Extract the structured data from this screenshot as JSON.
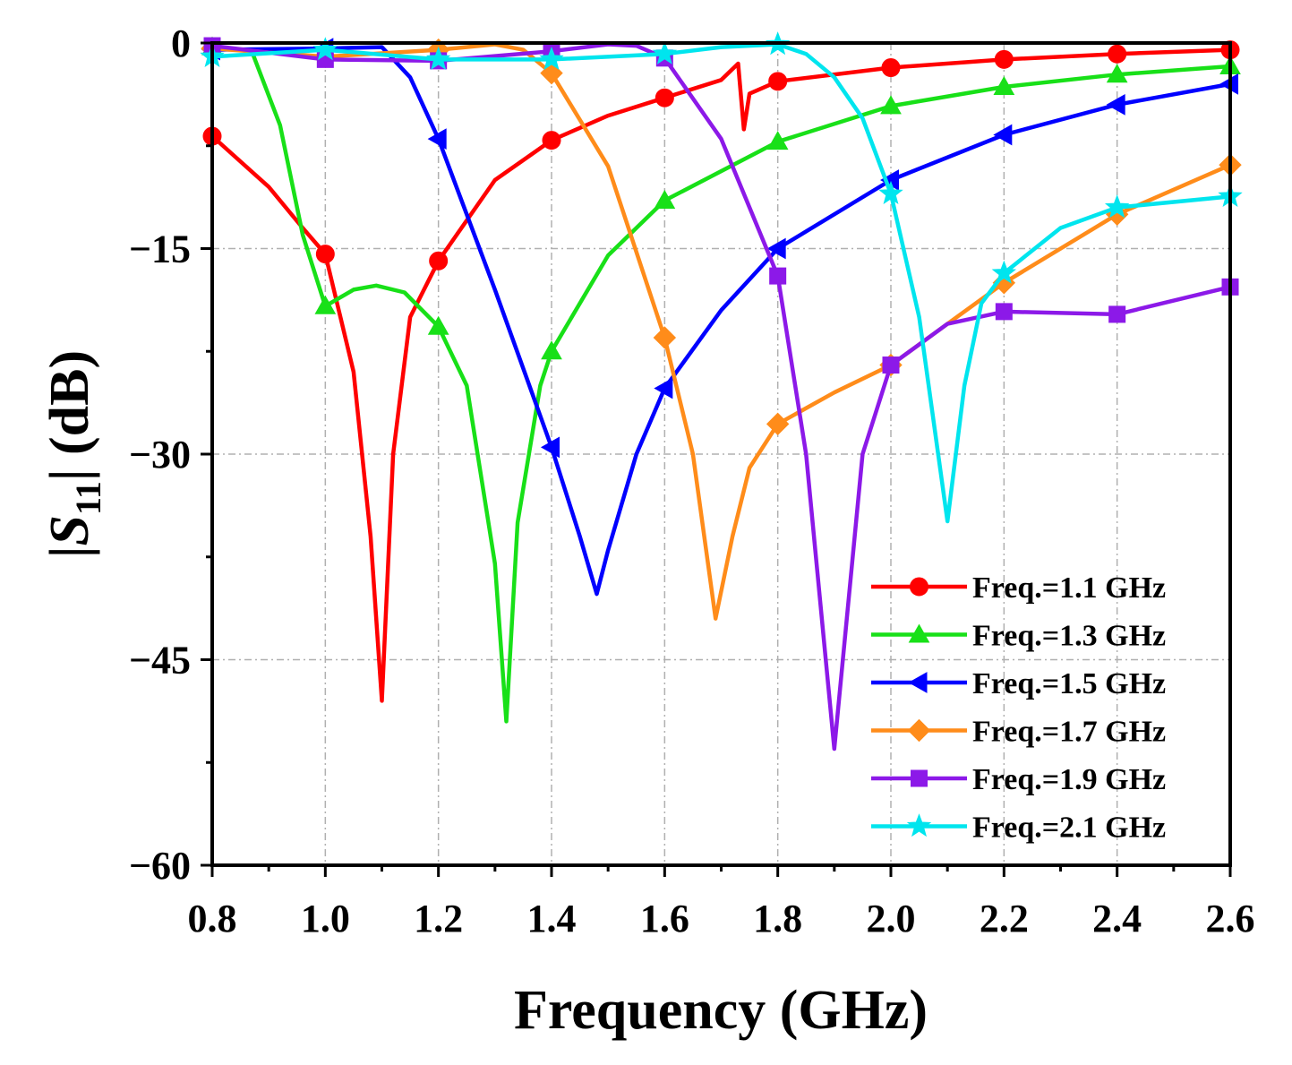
{
  "chart_data": {
    "type": "line",
    "title": "",
    "xlabel": "Frequency (GHz)",
    "ylabel_parts": {
      "left": "|",
      "var": "S",
      "sub": "11",
      "right": "| (dB)"
    },
    "xlim": [
      0.8,
      2.6
    ],
    "ylim": [
      -60,
      0
    ],
    "xticks": [
      0.8,
      1.0,
      1.2,
      1.4,
      1.6,
      1.8,
      2.0,
      2.2,
      2.4,
      2.6
    ],
    "xtick_labels": [
      "0.8",
      "1.0",
      "1.2",
      "1.4",
      "1.6",
      "1.8",
      "2.0",
      "2.2",
      "2.4",
      "2.6"
    ],
    "yticks": [
      0,
      -15,
      -30,
      -45,
      -60
    ],
    "ytick_labels": [
      "0",
      "−15",
      "−30",
      "−45",
      "−60"
    ],
    "grid": true,
    "legend_position": "bottom-right",
    "series": [
      {
        "name": "Freq.=1.1 GHz",
        "color": "#ff0000",
        "marker": "circle",
        "x": [
          0.8,
          0.9,
          0.96,
          1.0,
          1.05,
          1.08,
          1.1,
          1.12,
          1.15,
          1.2,
          1.3,
          1.4,
          1.5,
          1.6,
          1.7,
          1.73,
          1.74,
          1.75,
          1.8,
          2.0,
          2.2,
          2.4,
          2.6
        ],
        "y": [
          -6.8,
          -10.5,
          -13.5,
          -15.4,
          -24,
          -36,
          -48,
          -30,
          -20,
          -15.9,
          -10,
          -7.1,
          -5.3,
          -4,
          -2.7,
          -1.5,
          -6.3,
          -3.7,
          -2.8,
          -1.8,
          -1.2,
          -0.8,
          -0.5
        ],
        "mx": [
          0.8,
          1.0,
          1.2,
          1.4,
          1.6,
          1.8,
          2.0,
          2.2,
          2.4,
          2.6
        ],
        "my": [
          -6.8,
          -15.4,
          -15.9,
          -7.1,
          -4,
          -2.8,
          -1.8,
          -1.2,
          -0.8,
          -0.5
        ]
      },
      {
        "name": "Freq.=1.3 GHz",
        "color": "#18e018",
        "marker": "triangle-up",
        "x": [
          0.8,
          0.87,
          0.92,
          0.96,
          1.0,
          1.05,
          1.09,
          1.14,
          1.2,
          1.25,
          1.3,
          1.32,
          1.34,
          1.38,
          1.4,
          1.5,
          1.6,
          1.8,
          2.0,
          2.2,
          2.4,
          2.6
        ],
        "y": [
          -0.3,
          -0.6,
          -6,
          -14,
          -19.2,
          -18,
          -17.7,
          -18.2,
          -20.7,
          -25,
          -38,
          -49.5,
          -35,
          -25,
          -22.5,
          -15.5,
          -11.5,
          -7.2,
          -4.6,
          -3.2,
          -2.3,
          -1.7
        ],
        "mx": [
          0.8,
          1.0,
          1.2,
          1.4,
          1.6,
          1.8,
          2.0,
          2.2,
          2.4,
          2.6
        ],
        "my": [
          -0.3,
          -19.2,
          -20.7,
          -22.5,
          -11.5,
          -7.2,
          -4.6,
          -3.2,
          -2.3,
          -1.7
        ]
      },
      {
        "name": "Freq.=1.5 GHz",
        "color": "#0000ff",
        "marker": "triangle-left",
        "x": [
          0.8,
          1.0,
          1.1,
          1.15,
          1.2,
          1.3,
          1.4,
          1.45,
          1.48,
          1.5,
          1.55,
          1.6,
          1.7,
          1.8,
          2.0,
          2.2,
          2.4,
          2.6
        ],
        "y": [
          -0.5,
          -0.4,
          -0.3,
          -2.5,
          -7,
          -18,
          -29.5,
          -36,
          -40.2,
          -37,
          -30,
          -25.2,
          -19.5,
          -15,
          -10,
          -6.7,
          -4.5,
          -3
        ],
        "mx": [
          0.8,
          1.0,
          1.2,
          1.4,
          1.6,
          1.8,
          2.0,
          2.2,
          2.4,
          2.6
        ],
        "my": [
          -0.5,
          -0.4,
          -7,
          -29.5,
          -25.2,
          -15,
          -10,
          -6.7,
          -4.5,
          -3
        ]
      },
      {
        "name": "Freq.=1.7 GHz",
        "color": "#ff8c1a",
        "marker": "diamond",
        "x": [
          0.8,
          1.0,
          1.2,
          1.3,
          1.35,
          1.4,
          1.5,
          1.6,
          1.65,
          1.69,
          1.72,
          1.75,
          1.8,
          1.9,
          2.0,
          2.1,
          2.2,
          2.4,
          2.6
        ],
        "y": [
          -0.4,
          -1.0,
          -0.5,
          -0.1,
          -0.5,
          -2.2,
          -9,
          -21.5,
          -30,
          -42,
          -36,
          -31,
          -27.8,
          -25.5,
          -23.5,
          -20.5,
          -17.5,
          -12.5,
          -8.9
        ],
        "mx": [
          0.8,
          1.0,
          1.2,
          1.4,
          1.6,
          1.8,
          2.0,
          2.2,
          2.4,
          2.6
        ],
        "my": [
          -0.4,
          -1.0,
          -0.5,
          -2.2,
          -21.5,
          -27.8,
          -23.5,
          -17.5,
          -12.5,
          -8.9
        ]
      },
      {
        "name": "Freq.=1.9 GHz",
        "color": "#8c19e8",
        "marker": "square",
        "x": [
          0.8,
          1.0,
          1.2,
          1.4,
          1.5,
          1.55,
          1.6,
          1.7,
          1.8,
          1.85,
          1.9,
          1.95,
          2.0,
          2.1,
          2.2,
          2.4,
          2.6
        ],
        "y": [
          -0.2,
          -1.2,
          -1.3,
          -0.6,
          -0.1,
          -0.2,
          -1.1,
          -7,
          -17,
          -30,
          -51.5,
          -30,
          -23.5,
          -20.5,
          -19.6,
          -19.8,
          -17.8
        ],
        "mx": [
          0.8,
          1.0,
          1.2,
          1.4,
          1.6,
          1.8,
          2.0,
          2.2,
          2.4,
          2.6
        ],
        "my": [
          -0.2,
          -1.2,
          -1.3,
          -0.6,
          -1.1,
          -17,
          -23.5,
          -19.6,
          -19.8,
          -17.8
        ]
      },
      {
        "name": "Freq.=2.1 GHz",
        "color": "#00e5ee",
        "marker": "star",
        "x": [
          0.8,
          1.0,
          1.2,
          1.4,
          1.6,
          1.7,
          1.8,
          1.85,
          1.9,
          1.95,
          2.0,
          2.05,
          2.1,
          2.13,
          2.16,
          2.2,
          2.3,
          2.4,
          2.6
        ],
        "y": [
          -1,
          -0.5,
          -1.2,
          -1.2,
          -0.8,
          -0.3,
          -0.1,
          -0.8,
          -2.5,
          -5.5,
          -11,
          -20,
          -34.9,
          -25,
          -19,
          -16.8,
          -13.5,
          -12,
          -11.2
        ],
        "mx": [
          0.8,
          1.0,
          1.2,
          1.4,
          1.6,
          1.8,
          2.0,
          2.2,
          2.4,
          2.6
        ],
        "my": [
          -1,
          -0.5,
          -1.2,
          -1.2,
          -0.8,
          -0.1,
          -11,
          -16.8,
          -12,
          -11.2
        ]
      }
    ]
  }
}
